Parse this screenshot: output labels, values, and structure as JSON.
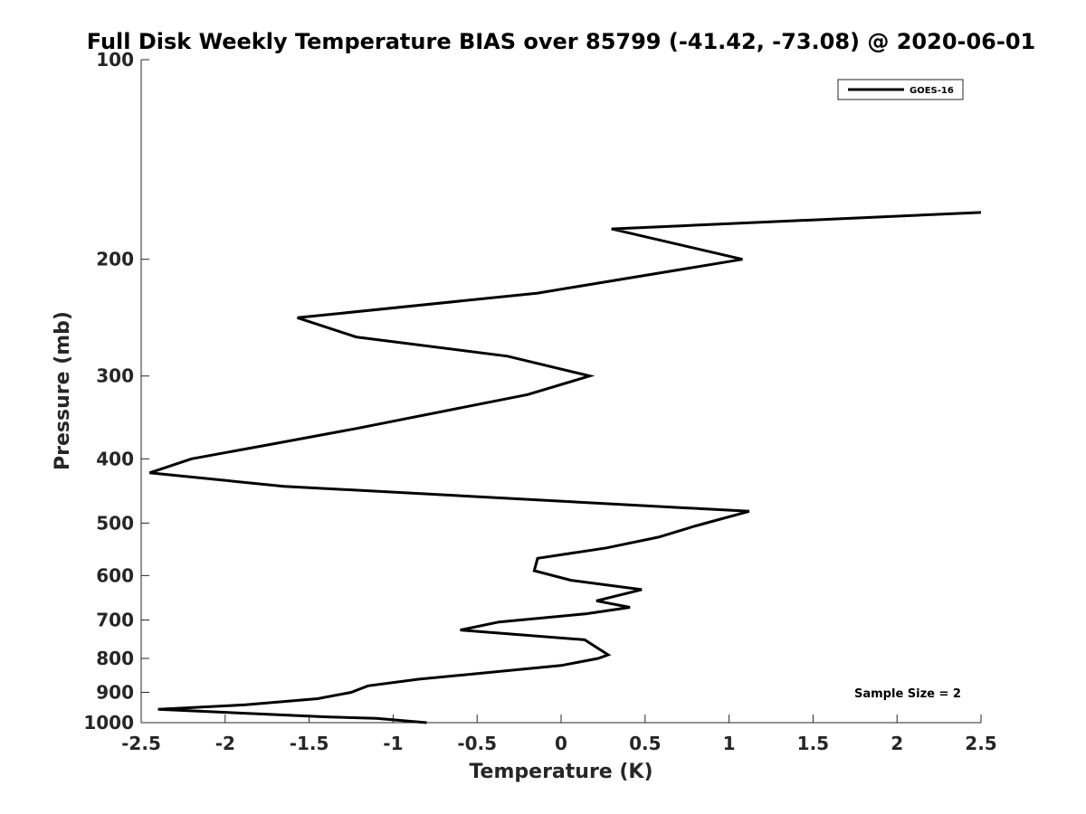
{
  "chart_data": {
    "type": "line",
    "title": "Full Disk Weekly Temperature BIAS over 85799 (-41.42, -73.08) @ 2020-06-01",
    "xlabel": "Temperature (K)",
    "ylabel": "Pressure (mb)",
    "xlim": [
      -2.5,
      2.5
    ],
    "ylim": [
      100,
      1000
    ],
    "yscale": "log",
    "y_reversed": true,
    "xticks": [
      -2.5,
      -2,
      -1.5,
      -1,
      -0.5,
      0,
      0.5,
      1,
      1.5,
      2,
      2.5
    ],
    "xtick_labels": [
      "-2.5",
      "-2",
      "-1.5",
      "-1",
      "-0.5",
      "0",
      "0.5",
      "1",
      "1.5",
      "2",
      "2.5"
    ],
    "yticks": [
      100,
      200,
      300,
      400,
      500,
      600,
      700,
      800,
      900,
      1000
    ],
    "ytick_labels": [
      "100",
      "200",
      "300",
      "400",
      "500",
      "600",
      "700",
      "800",
      "900",
      "1000"
    ],
    "grid": false,
    "legend_position": "top-right",
    "annotation": "Sample Size = 2",
    "colors": {
      "line": "#000000",
      "axis": "#262626",
      "background": "#ffffff"
    },
    "series": [
      {
        "name": "GOES-16",
        "points": [
          {
            "x": -0.8,
            "p": 1000
          },
          {
            "x": -1.1,
            "p": 985
          },
          {
            "x": -1.4,
            "p": 980
          },
          {
            "x": -2.4,
            "p": 955
          },
          {
            "x": -1.88,
            "p": 940
          },
          {
            "x": -1.45,
            "p": 920
          },
          {
            "x": -1.25,
            "p": 900
          },
          {
            "x": -1.15,
            "p": 880
          },
          {
            "x": -0.85,
            "p": 860
          },
          {
            "x": 0.0,
            "p": 820
          },
          {
            "x": 0.22,
            "p": 800
          },
          {
            "x": 0.28,
            "p": 790
          },
          {
            "x": 0.14,
            "p": 750
          },
          {
            "x": -0.6,
            "p": 725
          },
          {
            "x": -0.37,
            "p": 705
          },
          {
            "x": 0.15,
            "p": 685
          },
          {
            "x": 0.41,
            "p": 670
          },
          {
            "x": 0.21,
            "p": 655
          },
          {
            "x": 0.48,
            "p": 630
          },
          {
            "x": 0.06,
            "p": 610
          },
          {
            "x": -0.16,
            "p": 590
          },
          {
            "x": -0.14,
            "p": 565
          },
          {
            "x": 0.27,
            "p": 545
          },
          {
            "x": 0.58,
            "p": 525
          },
          {
            "x": 0.8,
            "p": 505
          },
          {
            "x": 1.12,
            "p": 480
          },
          {
            "x": -1.65,
            "p": 440
          },
          {
            "x": -2.45,
            "p": 420
          },
          {
            "x": -2.2,
            "p": 400
          },
          {
            "x": -1.72,
            "p": 380
          },
          {
            "x": -1.22,
            "p": 360
          },
          {
            "x": -0.2,
            "p": 320
          },
          {
            "x": 0.17,
            "p": 300
          },
          {
            "x": -0.32,
            "p": 280
          },
          {
            "x": -1.22,
            "p": 262
          },
          {
            "x": -1.57,
            "p": 245
          },
          {
            "x": -0.14,
            "p": 225
          },
          {
            "x": 1.08,
            "p": 200
          },
          {
            "x": 0.3,
            "p": 180
          },
          {
            "x": 2.5,
            "p": 170
          }
        ]
      }
    ]
  }
}
